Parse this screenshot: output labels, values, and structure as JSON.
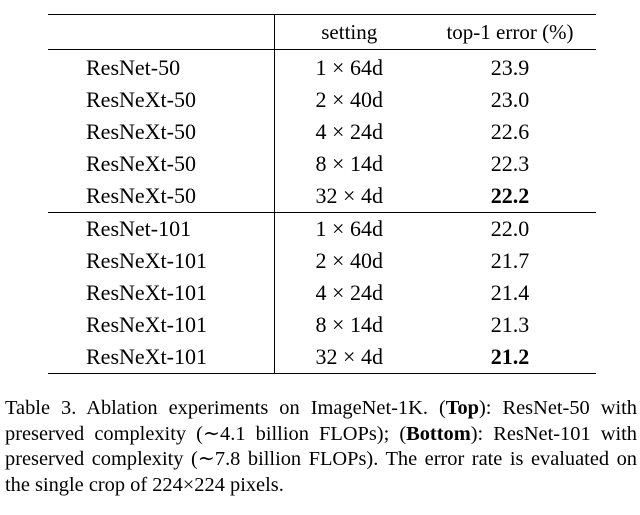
{
  "table": {
    "headers": {
      "model": "",
      "setting": "setting",
      "error": "top-1 error (%)"
    },
    "groups": [
      {
        "rows": [
          {
            "model": "ResNet-50",
            "setting": "1 × 64d",
            "error": "23.9",
            "best": false
          },
          {
            "model": "ResNeXt-50",
            "setting": "2 × 40d",
            "error": "23.0",
            "best": false
          },
          {
            "model": "ResNeXt-50",
            "setting": "4 × 24d",
            "error": "22.6",
            "best": false
          },
          {
            "model": "ResNeXt-50",
            "setting": "8 × 14d",
            "error": "22.3",
            "best": false
          },
          {
            "model": "ResNeXt-50",
            "setting": "32 × 4d",
            "error": "22.2",
            "best": true
          }
        ]
      },
      {
        "rows": [
          {
            "model": "ResNet-101",
            "setting": "1 × 64d",
            "error": "22.0",
            "best": false
          },
          {
            "model": "ResNeXt-101",
            "setting": "2 × 40d",
            "error": "21.7",
            "best": false
          },
          {
            "model": "ResNeXt-101",
            "setting": "4 × 24d",
            "error": "21.4",
            "best": false
          },
          {
            "model": "ResNeXt-101",
            "setting": "8 × 14d",
            "error": "21.3",
            "best": false
          },
          {
            "model": "ResNeXt-101",
            "setting": "32 × 4d",
            "error": "21.2",
            "best": true
          }
        ]
      }
    ]
  },
  "caption": {
    "part1": "Table 3. Ablation experiments on ImageNet-1K. (",
    "top_label": "Top",
    "part2": "): ResNet-50 with preserved complexity (∼4.1 billion FLOPs); (",
    "bottom_label": "Bottom",
    "part3": "): ResNet-101 with preserved complexity (∼7.8 billion FLOPs). The error rate is evaluated on the single crop of 224×224 pixels."
  }
}
